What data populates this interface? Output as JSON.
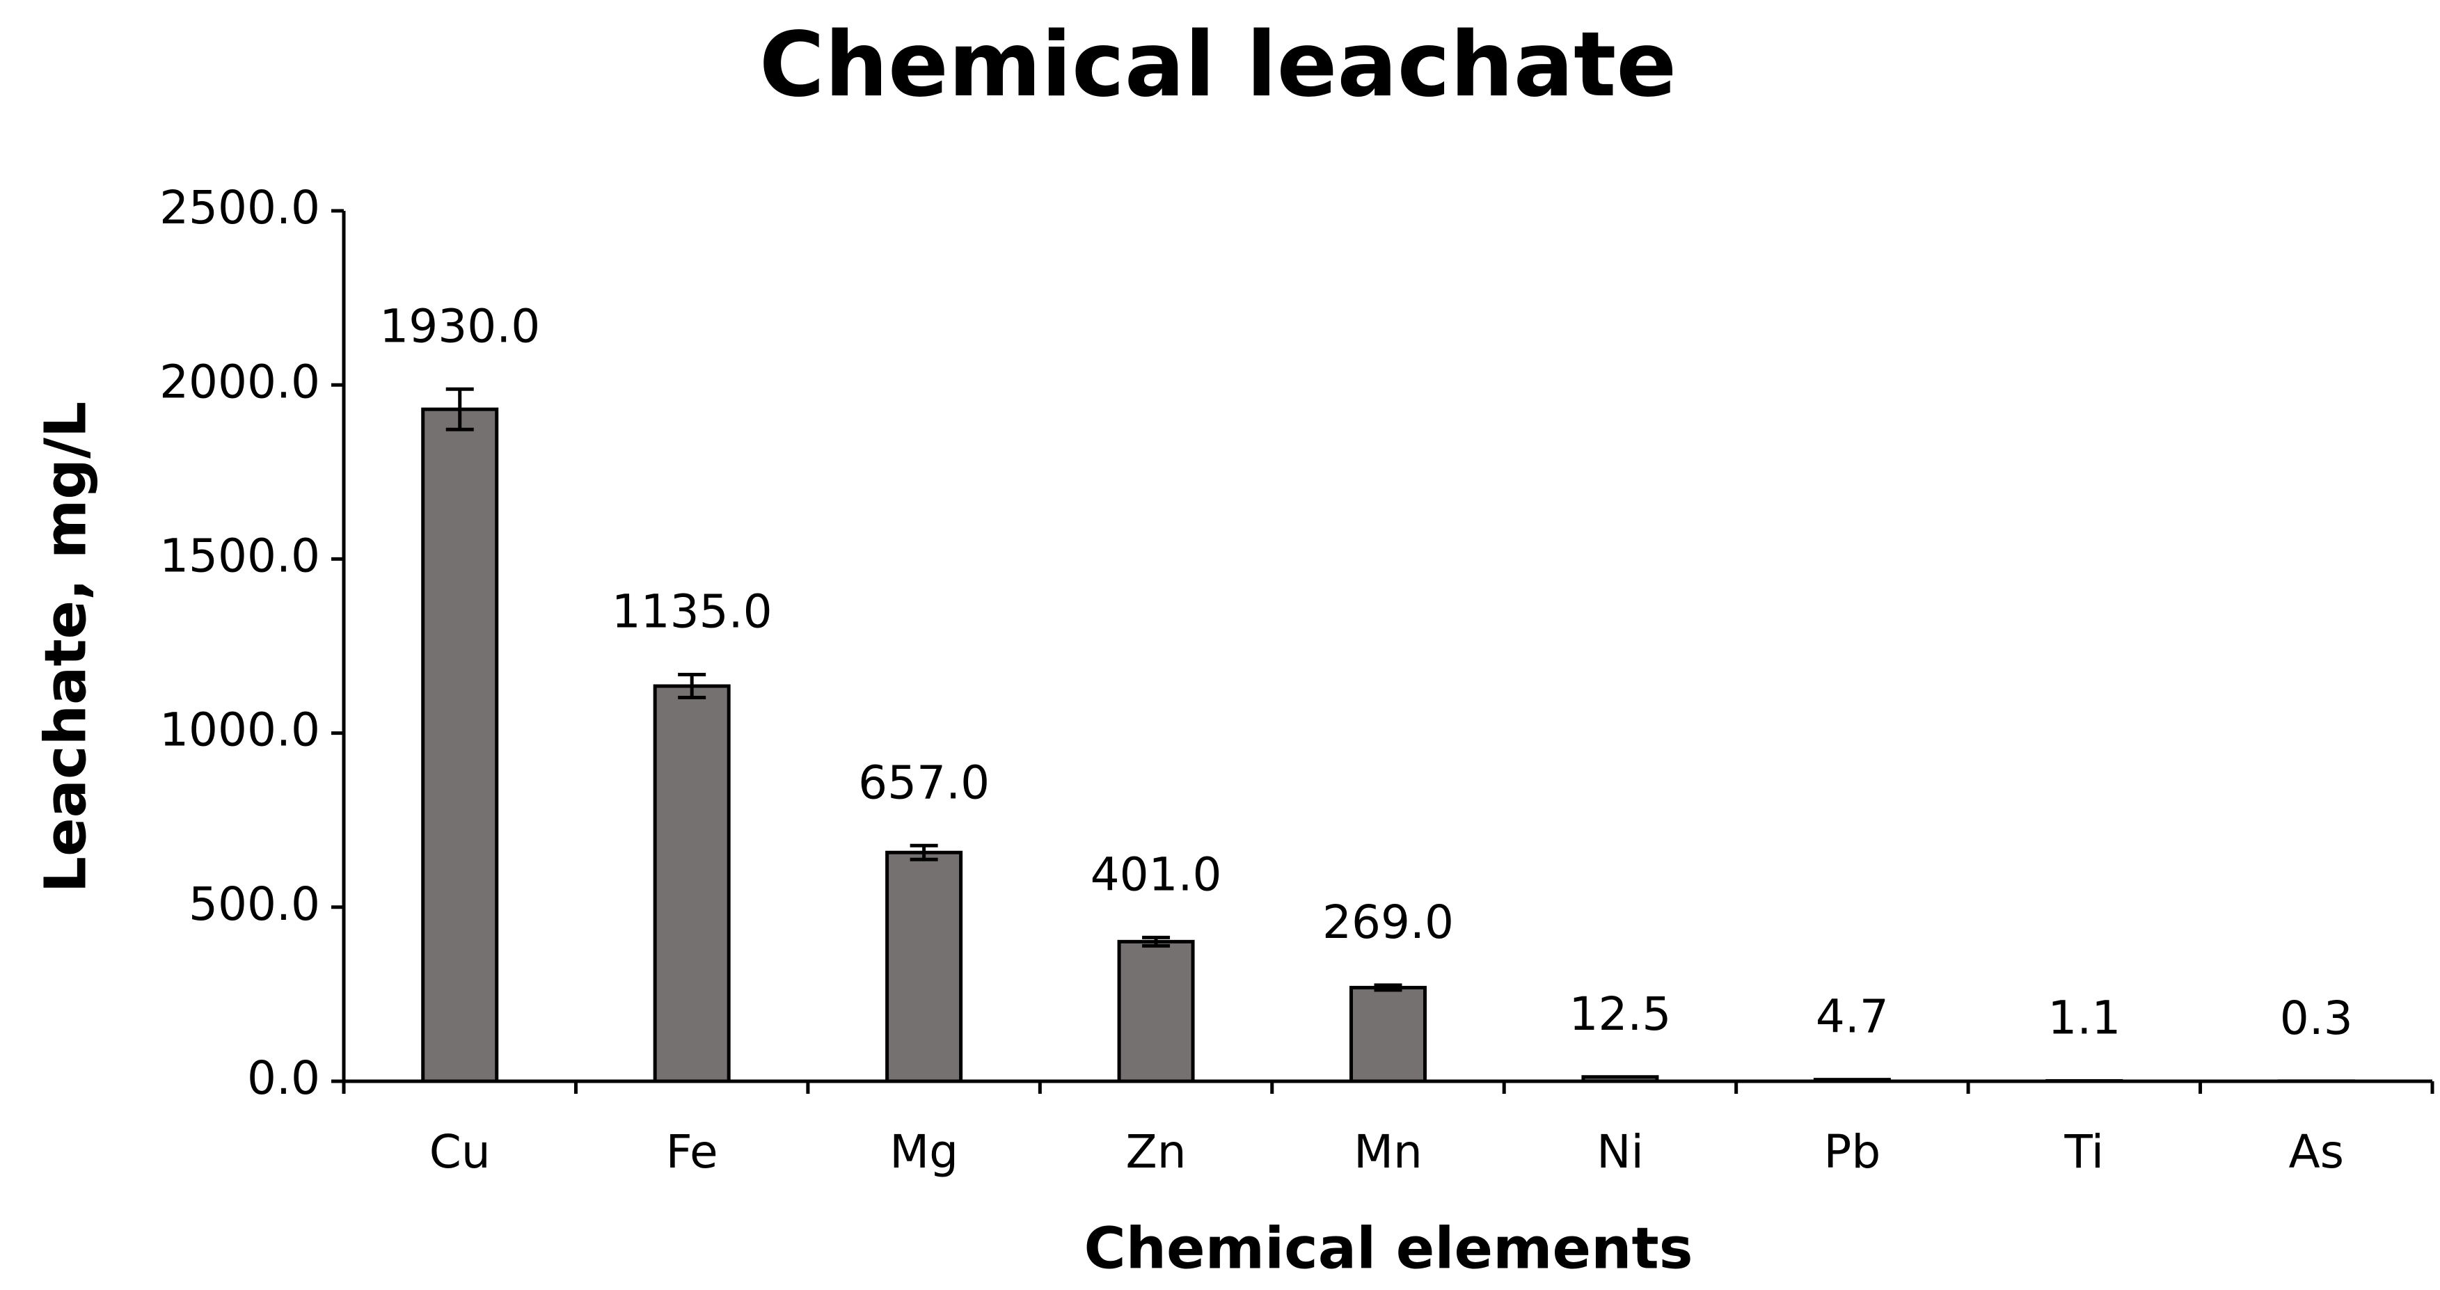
{
  "chart_data": {
    "type": "bar",
    "title": "Chemical leachate",
    "x_label": "Chemical elements",
    "y_label": "Leachate, mg/L",
    "categories": [
      "Cu",
      "Fe",
      "Mg",
      "Zn",
      "Mn",
      "Ni",
      "Pb",
      "Ti",
      "As"
    ],
    "values": [
      1930,
      1135,
      657,
      401,
      269,
      12.5,
      4.7,
      1.1,
      0.3
    ],
    "value_labels": [
      "1930.0",
      "1135.0",
      "657.0",
      "401.0",
      "269.0",
      "12.5",
      "4.7",
      "1.1",
      "0.3"
    ],
    "errors": [
      58,
      33,
      20,
      12,
      7,
      null,
      null,
      null,
      null
    ],
    "color": "#767171",
    "ylim": [
      0,
      2500
    ],
    "yticks": [
      {
        "value": 0,
        "label": "0.0"
      },
      {
        "value": 500,
        "label": "500.0"
      },
      {
        "value": 1000,
        "label": "1000.0"
      },
      {
        "value": 1500,
        "label": "1500.0"
      },
      {
        "value": 2000,
        "label": "2000.0"
      },
      {
        "value": 2500,
        "label": "2500.0"
      }
    ],
    "grid": false
  }
}
